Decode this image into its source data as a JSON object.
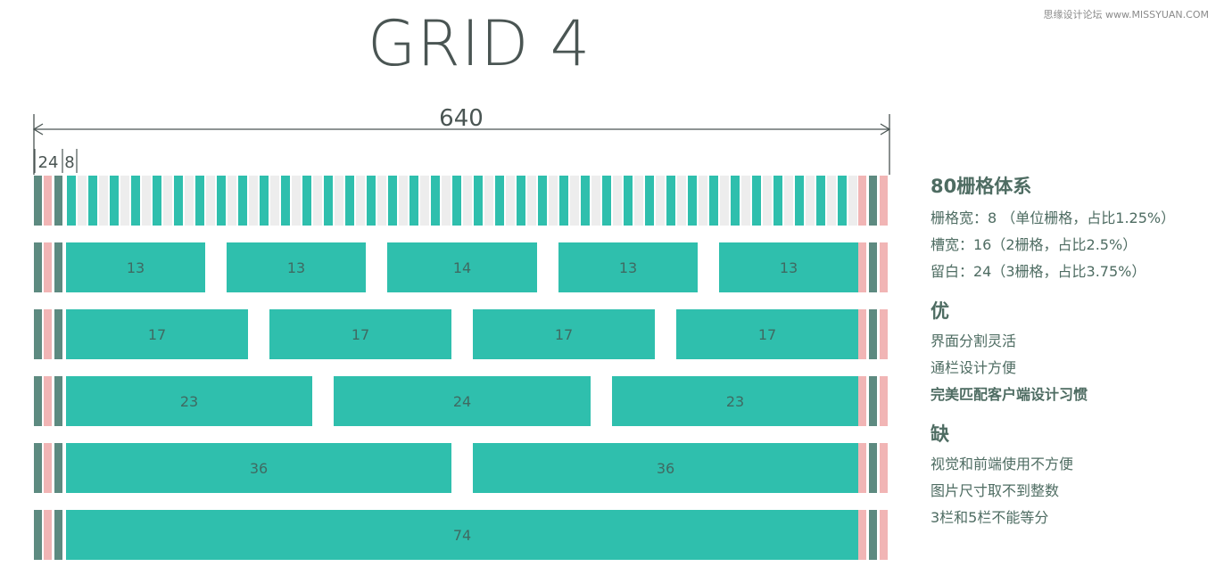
{
  "title": "GRID 4",
  "watermark": "思缘设计论坛 www.MISSYUAN.COM",
  "dimensions": {
    "total": "640",
    "margin": "24",
    "cell": "8"
  },
  "rows": [
    {
      "labels": [
        "13",
        "13",
        "14",
        "13",
        "13"
      ],
      "spans": [
        13,
        13,
        14,
        13,
        13
      ]
    },
    {
      "labels": [
        "17",
        "17",
        "17",
        "17"
      ],
      "spans": [
        17,
        17,
        17,
        17
      ]
    },
    {
      "labels": [
        "23",
        "24",
        "23"
      ],
      "spans": [
        23,
        24,
        23
      ]
    },
    {
      "labels": [
        "36",
        "36"
      ],
      "spans": [
        36,
        36
      ]
    },
    {
      "labels": [
        "74"
      ],
      "spans": [
        74
      ]
    }
  ],
  "colors": {
    "teal": "#2fbfad",
    "dark": "#5d8a80",
    "pink": "#f1b5b5",
    "light": "#ededed",
    "text": "#4e6c62"
  },
  "side": {
    "system_title": "80栅格体系",
    "grid_width": "栅格宽：8 （单位栅格，占比1.25%）",
    "gutter_width": "槽宽：16（2栅格，占比2.5%）",
    "margin_width": "留白：24（3栅格，占比3.75%）",
    "pros_title": "优",
    "pros": [
      "界面分割灵活",
      "通栏设计方便",
      "完美匹配客户端设计习惯"
    ],
    "cons_title": "缺",
    "cons": [
      "视觉和前端使用不方便",
      "图片尺寸取不到整数",
      "3栏和5栏不能等分"
    ]
  }
}
